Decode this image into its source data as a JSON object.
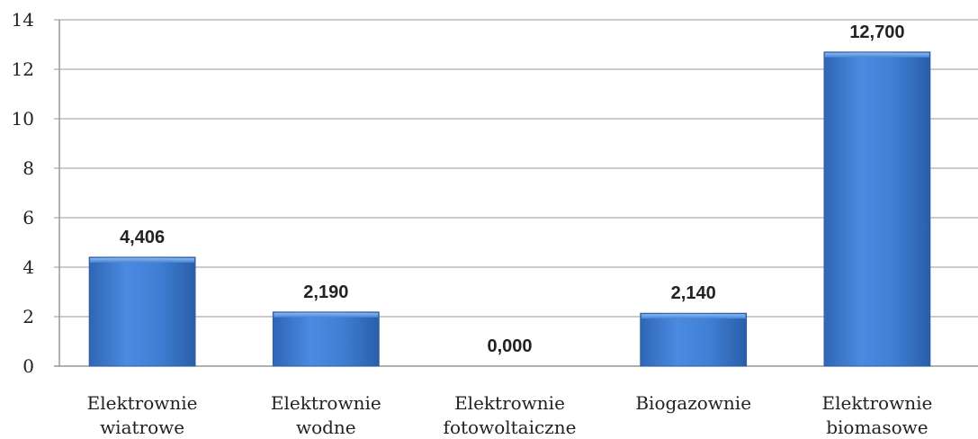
{
  "chart_data": {
    "type": "bar",
    "categories": [
      [
        "Elektrownie",
        "wiatrowe"
      ],
      [
        "Elektrownie",
        "wodne"
      ],
      [
        "Elektrownie",
        "fotowoltaiczne"
      ],
      [
        "Biogazownie"
      ],
      [
        "Elektrownie",
        "biomasowe"
      ]
    ],
    "values": [
      4.406,
      2.19,
      0.0,
      2.14,
      12.7
    ],
    "data_labels": [
      "4,406",
      "2,190",
      "0,000",
      "2,140",
      "12,700"
    ],
    "ylim": [
      0,
      14
    ],
    "y_ticks": [
      "0",
      "2",
      "4",
      "6",
      "8",
      "10",
      "12",
      "14"
    ],
    "y_tick_values": [
      0,
      2,
      4,
      6,
      8,
      10,
      12,
      14
    ],
    "grid": true,
    "legend": "none",
    "colors": {
      "bar": "#3f7fd4",
      "bar_light": "#6fa3e6",
      "bar_dark": "#2a5ea8",
      "grid": "#9a9a9a"
    }
  }
}
